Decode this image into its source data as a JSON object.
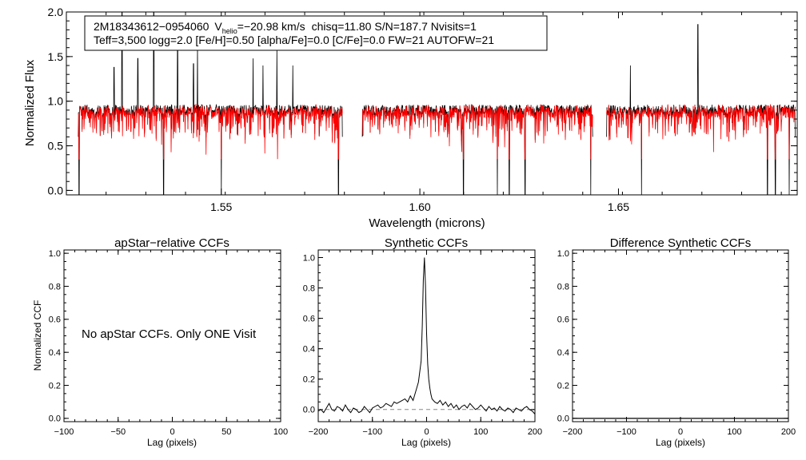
{
  "figure": {
    "main": {
      "ylabel": "Normalized Flux",
      "xlabel": "Wavelength (microns)",
      "info_line1": {
        "star": "2M18343612−0954060",
        "vhelio_label": "V",
        "vhelio_sub": "helio",
        "vhelio_value": "=−20.98 km/s",
        "rest": "chisq=11.80  S/N=187.7  Nvisits=1"
      },
      "info_line2": "Teff=3,500 logg=2.0 [Fe/H]=0.50 [alpha/Fe]=0.0 [C/Fe]=0.0 FW=21 AUTOFW=21"
    },
    "panel1": {
      "title": "apStar−relative CCFs",
      "ylabel": "Normalized CCF",
      "xlabel": "Lag (pixels)",
      "message": "No apStar CCFs.  Only ONE Visit"
    },
    "panel2": {
      "title": "Synthetic CCFs",
      "xlabel": "Lag (pixels)"
    },
    "panel3": {
      "title": "Difference Synthetic CCFs",
      "xlabel": "Lag (pixels)"
    }
  },
  "colors": {
    "observed": "#000000",
    "model": "#ff0000",
    "zero_line": "#888888"
  },
  "chart_data": [
    {
      "type": "line",
      "title": "",
      "xlabel": "Wavelength (microns)",
      "ylabel": "Normalized Flux",
      "xlim": [
        1.511,
        1.695
      ],
      "ylim": [
        -0.05,
        2.0
      ],
      "xticks": [
        "1.55",
        "1.60",
        "1.65"
      ],
      "xtick_values": [
        1.55,
        1.6,
        1.65
      ],
      "yticks": [
        "0.0",
        "0.5",
        "1.0",
        "1.5",
        "2.0"
      ],
      "ytick_values": [
        0.0,
        0.5,
        1.0,
        1.5,
        2.0
      ],
      "detector_chips": [
        [
          1.514,
          1.5805
        ],
        [
          1.5855,
          1.6435
        ],
        [
          1.647,
          1.6945
        ]
      ],
      "continuum_level": 0.9,
      "emission_spikes": [
        {
          "x": 1.523,
          "y": 1.38
        },
        {
          "x": 1.525,
          "y": 2.0
        },
        {
          "x": 1.529,
          "y": 1.48
        },
        {
          "x": 1.533,
          "y": 2.0
        },
        {
          "x": 1.539,
          "y": 1.65
        },
        {
          "x": 1.543,
          "y": 1.42
        },
        {
          "x": 1.544,
          "y": 1.65
        },
        {
          "x": 1.558,
          "y": 1.48
        },
        {
          "x": 1.5605,
          "y": 1.4
        },
        {
          "x": 1.564,
          "y": 1.6
        },
        {
          "x": 1.568,
          "y": 1.4
        },
        {
          "x": 1.653,
          "y": 1.4
        },
        {
          "x": 1.67,
          "y": 1.86
        }
      ],
      "absorption_dips": [
        {
          "x": 1.5142,
          "y": -0.05
        },
        {
          "x": 1.5355,
          "y": -0.05
        },
        {
          "x": 1.55,
          "y": -0.05
        },
        {
          "x": 1.5795,
          "y": -0.05
        },
        {
          "x": 1.611,
          "y": -0.05
        },
        {
          "x": 1.6195,
          "y": -0.05
        },
        {
          "x": 1.6225,
          "y": -0.05
        },
        {
          "x": 1.6265,
          "y": -0.05
        },
        {
          "x": 1.643,
          "y": -0.05
        },
        {
          "x": 1.6558,
          "y": -0.05
        },
        {
          "x": 1.6875,
          "y": -0.05
        },
        {
          "x": 1.6895,
          "y": -0.05
        },
        {
          "x": 1.693,
          "y": -0.05
        }
      ],
      "series": [
        {
          "name": "",
          "color": "#000000"
        },
        {
          "name": "",
          "color": "#ff0000"
        }
      ]
    },
    {
      "type": "line",
      "title": "apStar−relative CCFs",
      "xlabel": "Lag (pixels)",
      "ylabel": "Normalized CCF",
      "xlim": [
        -100,
        100
      ],
      "ylim": [
        -0.02,
        1.02
      ],
      "xticks": [
        "−100",
        "−50",
        "0",
        "50",
        "100"
      ],
      "xtick_values": [
        -100,
        -50,
        0,
        50,
        100
      ],
      "yticks": [
        "0.0",
        "0.2",
        "0.4",
        "0.6",
        "0.8",
        "1.0"
      ],
      "ytick_values": [
        0.0,
        0.2,
        0.4,
        0.6,
        0.8,
        1.0
      ],
      "series": []
    },
    {
      "type": "line",
      "title": "Synthetic CCFs",
      "xlabel": "Lag (pixels)",
      "ylabel": "",
      "xlim": [
        -200,
        200
      ],
      "ylim": [
        -0.08,
        1.05
      ],
      "xticks": [
        "−200",
        "−100",
        "0",
        "100",
        "200"
      ],
      "xtick_values": [
        -200,
        -100,
        0,
        100,
        200
      ],
      "yticks": [
        "0.0",
        "0.2",
        "0.4",
        "0.6",
        "0.8",
        "1.0"
      ],
      "ytick_values": [
        0.0,
        0.2,
        0.4,
        0.6,
        0.8,
        1.0
      ],
      "series": [
        {
          "name": "",
          "color": "#000000",
          "x": [
            -200,
            -195,
            -190,
            -185,
            -180,
            -175,
            -170,
            -165,
            -160,
            -155,
            -150,
            -145,
            -140,
            -135,
            -130,
            -125,
            -120,
            -115,
            -110,
            -105,
            -100,
            -95,
            -90,
            -85,
            -80,
            -75,
            -70,
            -65,
            -60,
            -55,
            -50,
            -45,
            -40,
            -35,
            -30,
            -25,
            -20,
            -15,
            -10,
            -8,
            -6,
            -4,
            -2,
            0,
            2,
            4,
            6,
            8,
            10,
            15,
            20,
            25,
            30,
            35,
            40,
            45,
            50,
            55,
            60,
            65,
            70,
            75,
            80,
            85,
            90,
            95,
            100,
            105,
            110,
            115,
            120,
            125,
            130,
            135,
            140,
            145,
            150,
            155,
            160,
            165,
            170,
            175,
            180,
            185,
            190,
            195,
            200
          ],
          "y": [
            -0.01,
            0.0,
            -0.02,
            0.01,
            0.04,
            0.0,
            -0.01,
            0.02,
            0.01,
            -0.01,
            0.03,
            0.0,
            -0.02,
            0.01,
            0.0,
            -0.02,
            -0.01,
            0.02,
            0.0,
            -0.02,
            0.01,
            0.02,
            0.03,
            0.01,
            0.02,
            0.04,
            0.03,
            0.02,
            0.05,
            0.04,
            0.05,
            0.06,
            0.07,
            0.05,
            0.09,
            0.06,
            0.12,
            0.18,
            0.32,
            0.55,
            0.85,
            1.0,
            0.82,
            0.5,
            0.3,
            0.2,
            0.14,
            0.1,
            0.07,
            0.05,
            0.04,
            0.06,
            0.03,
            0.05,
            0.02,
            0.04,
            0.01,
            0.03,
            0.0,
            0.02,
            0.03,
            0.01,
            0.04,
            0.02,
            0.0,
            0.01,
            0.03,
            0.01,
            -0.01,
            0.02,
            0.0,
            0.01,
            -0.01,
            0.02,
            0.0,
            -0.01,
            0.01,
            0.0,
            -0.02,
            0.01,
            0.0,
            -0.01,
            0.01,
            0.02,
            0.0,
            -0.01,
            -0.03
          ]
        }
      ]
    },
    {
      "type": "line",
      "title": "Difference Synthetic CCFs",
      "xlabel": "Lag (pixels)",
      "ylabel": "",
      "xlim": [
        -200,
        200
      ],
      "ylim": [
        -0.02,
        1.02
      ],
      "xticks": [
        "−200",
        "−100",
        "0",
        "100",
        "200"
      ],
      "xtick_values": [
        -200,
        -100,
        0,
        100,
        200
      ],
      "yticks": [
        "0.0",
        "0.2",
        "0.4",
        "0.6",
        "0.8",
        "1.0"
      ],
      "ytick_values": [
        0.0,
        0.2,
        0.4,
        0.6,
        0.8,
        1.0
      ],
      "series": [
        {
          "name": "",
          "color": "#000000",
          "x": [
            -200,
            200
          ],
          "y": [
            0.0,
            0.0
          ]
        }
      ]
    }
  ]
}
